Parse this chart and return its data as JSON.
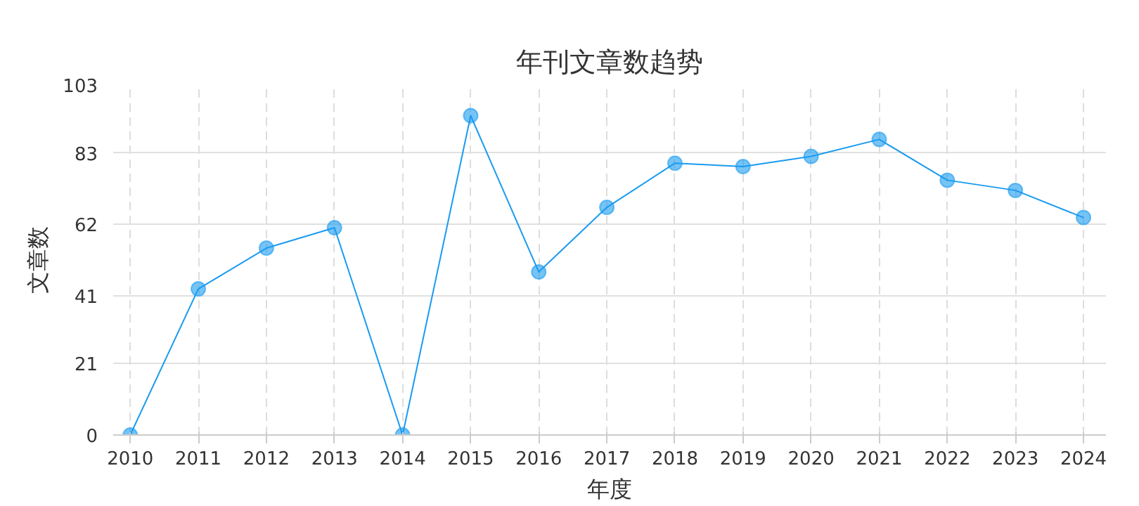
{
  "chart_data": {
    "type": "line",
    "title": "年刊文章数趋势",
    "xlabel": "年度",
    "ylabel": "文章数",
    "categories": [
      "2010",
      "2011",
      "2012",
      "2013",
      "2014",
      "2015",
      "2016",
      "2017",
      "2018",
      "2019",
      "2020",
      "2021",
      "2022",
      "2023",
      "2024"
    ],
    "series": [
      {
        "color": "#1a9bf0",
        "values": [
          0,
          43,
          55,
          61,
          0,
          94,
          48,
          67,
          80,
          79,
          82,
          87,
          75,
          72,
          64
        ]
      }
    ],
    "ylim": [
      0,
      103
    ],
    "yticks": [
      0,
      21,
      41,
      62,
      83,
      103
    ],
    "grid": true,
    "marker": "circle",
    "line_style": "solid"
  }
}
